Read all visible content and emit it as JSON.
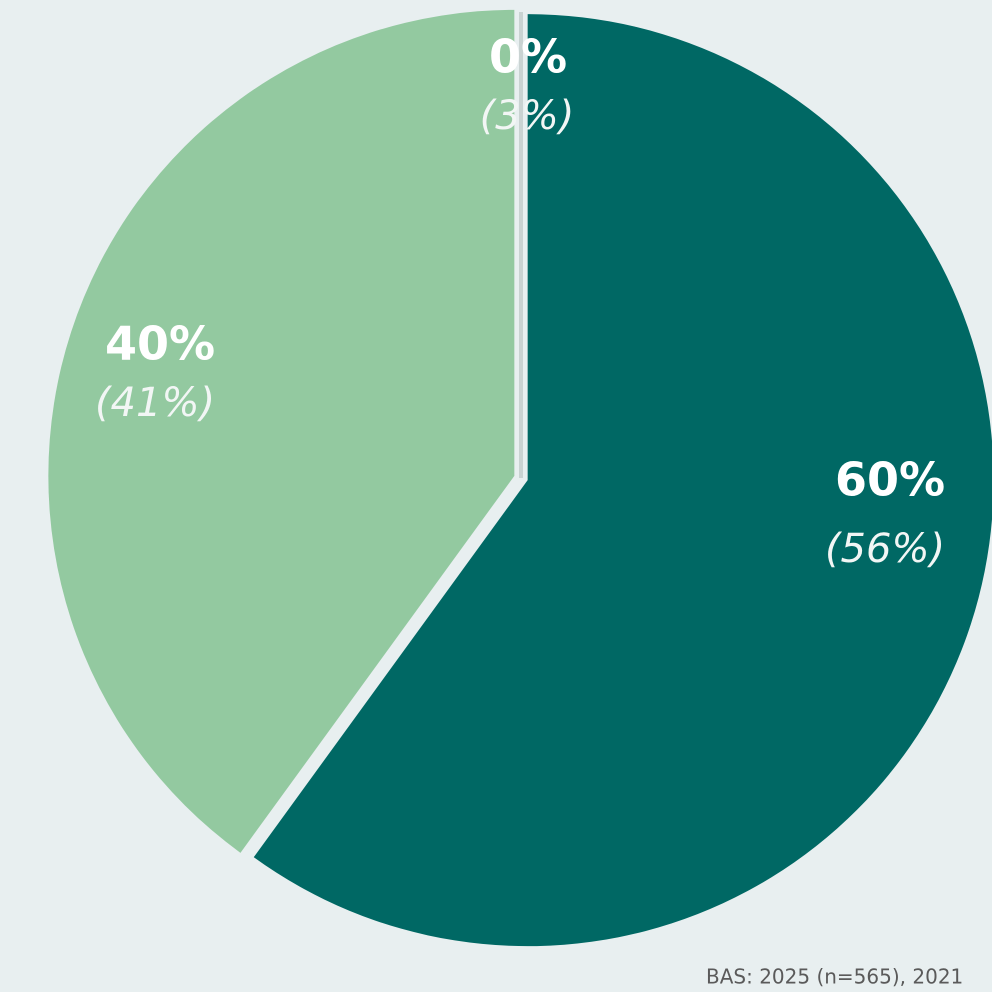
{
  "chart_data": {
    "type": "pie",
    "values": [
      60,
      40,
      0
    ],
    "value_labels": [
      "60%",
      "40%",
      "0%"
    ],
    "comparison_values": [
      56,
      41,
      3
    ],
    "comparison_labels": [
      "(56%)",
      "(41%)",
      "(3%)"
    ],
    "colors": [
      "#006864",
      "#93c9a0",
      "#c9d3d2"
    ],
    "footnote": "BAS: 2025 (n=565), 2021"
  }
}
